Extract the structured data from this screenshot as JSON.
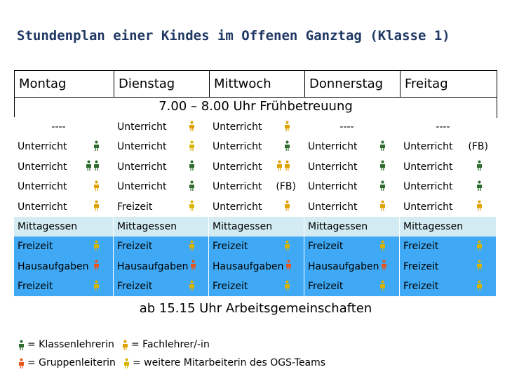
{
  "header": {
    "title": "Stundenplan einer Kindes im Offenen Ganztag (Klasse 1)"
  },
  "table": {
    "columns": [
      "Montag",
      "Dienstag",
      "Mittwoch",
      "Donnerstag",
      "Freitag"
    ],
    "early": "7.00 – 8.00 Uhr Frühbetreuung",
    "rows": [
      [
        {
          "text": "----"
        },
        {
          "text": "Unterricht"
        },
        {
          "text": "Unterricht"
        },
        {
          "text": "----"
        },
        {
          "text": "----"
        }
      ],
      [
        {
          "text": "Unterricht"
        },
        {
          "text": "Unterricht"
        },
        {
          "text": "Unterricht"
        },
        {
          "text": "Unterricht"
        },
        {
          "text": "Unterricht",
          "note": "(FB)"
        }
      ],
      [
        {
          "text": "Unterricht"
        },
        {
          "text": "Unterricht"
        },
        {
          "text": "Unterricht"
        },
        {
          "text": "Unterricht"
        },
        {
          "text": "Unterricht"
        }
      ],
      [
        {
          "text": "Unterricht"
        },
        {
          "text": "Unterricht"
        },
        {
          "text": "Unterricht",
          "note": "(FB)"
        },
        {
          "text": "Unterricht"
        },
        {
          "text": "Unterricht"
        }
      ],
      [
        {
          "text": "Unterricht"
        },
        {
          "text": "Freizeit"
        },
        {
          "text": "Unterricht"
        },
        {
          "text": "Unterricht"
        },
        {
          "text": "Unterricht"
        }
      ],
      [
        {
          "text": "Mittagessen"
        },
        {
          "text": "Mittagessen"
        },
        {
          "text": "Mittagessen"
        },
        {
          "text": "Mittagessen"
        },
        {
          "text": "Mittagessen"
        }
      ],
      [
        {
          "text": "Freizeit"
        },
        {
          "text": "Freizeit"
        },
        {
          "text": "Freizeit"
        },
        {
          "text": "Freizeit"
        },
        {
          "text": "Freizeit"
        }
      ],
      [
        {
          "text": "Hausaufgaben"
        },
        {
          "text": "Hausaufgaben"
        },
        {
          "text": "Hausaufgaben"
        },
        {
          "text": "Hausaufgaben"
        },
        {
          "text": "Freizeit"
        }
      ],
      [
        {
          "text": "Freizeit"
        },
        {
          "text": "Freizeit"
        },
        {
          "text": "Freizeit"
        },
        {
          "text": "Freizeit"
        },
        {
          "text": "Freizeit"
        }
      ]
    ],
    "afternoon": "ab 15.15 Uhr Arbeitsgemeinschaften"
  },
  "legend": [
    {
      "label": "= Klassenlehrerin"
    },
    {
      "label": "= Fachlehrer/-in"
    },
    {
      "label": "= Gruppenleiterin"
    },
    {
      "label": "= weitere Mitarbeiterin des OGS-Teams"
    }
  ]
}
